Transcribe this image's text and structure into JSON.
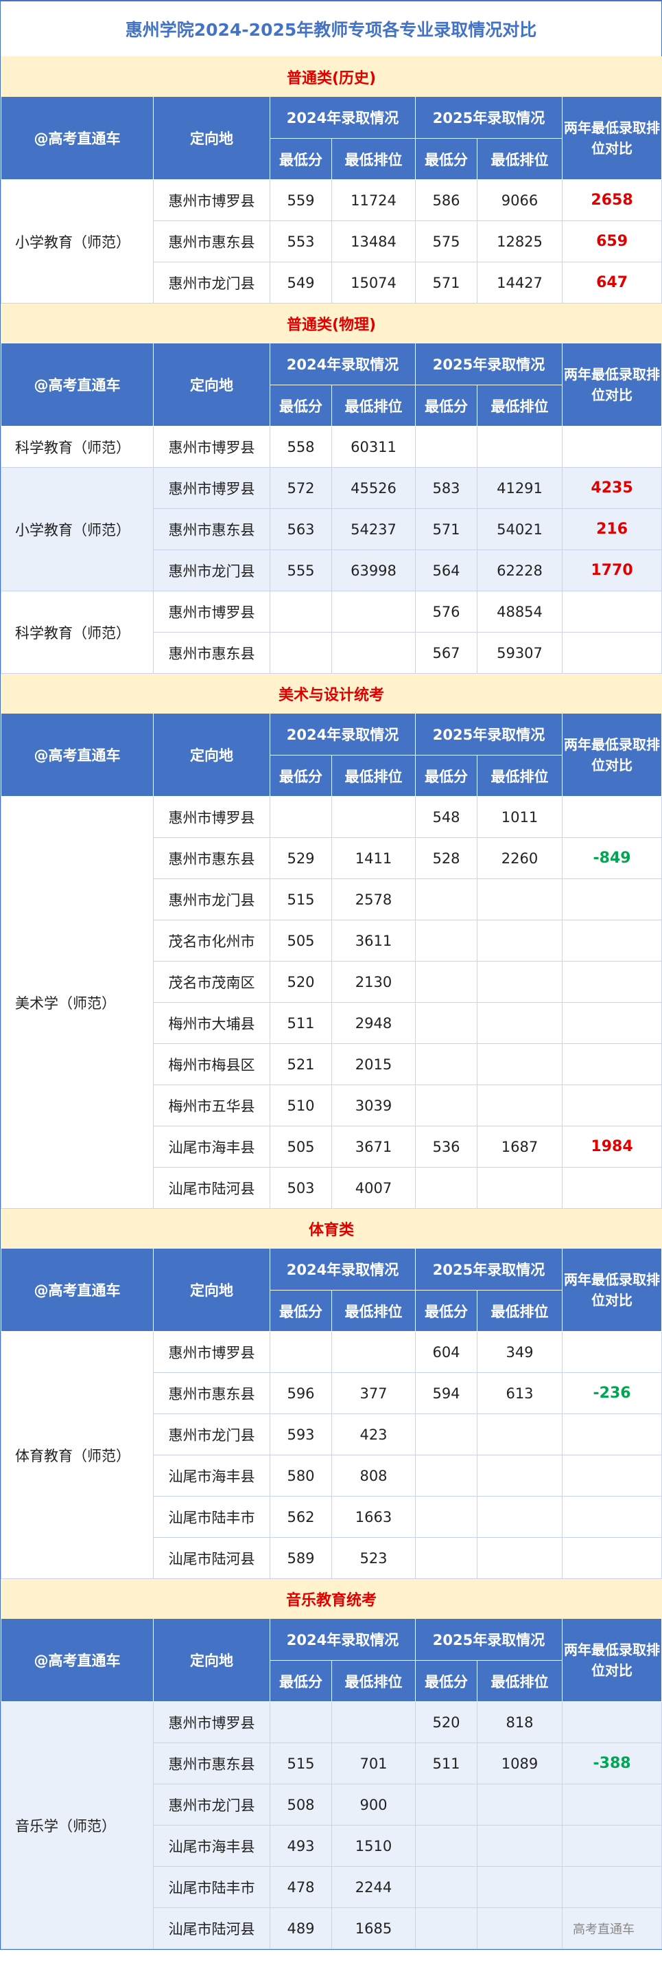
{
  "title": "惠州学院2024-2025年教师专项各专业录取情况对比",
  "header": {
    "corner": "@高考直通车",
    "location": "定向地",
    "y2024": "2024年录取情况",
    "y2025": "2025年录取情况",
    "compare": "两年最低录取排位对比",
    "min_score": "最低分",
    "min_rank": "最低排位"
  },
  "colors": {
    "accent": "#4472C4",
    "band": "#FFF2CC",
    "section_title": "#E00000",
    "positive": "#E00000",
    "negative": "#00A651"
  },
  "sections": [
    {
      "name": "普通类(历史)",
      "groups": [
        {
          "major": "小学教育（师范）",
          "alt": false,
          "rows": [
            {
              "loc": "惠州市博罗县",
              "s24": "559",
              "r24": "11724",
              "s25": "586",
              "r25": "9066",
              "cmp": "2658"
            },
            {
              "loc": "惠州市惠东县",
              "s24": "553",
              "r24": "13484",
              "s25": "575",
              "r25": "12825",
              "cmp": "659"
            },
            {
              "loc": "惠州市龙门县",
              "s24": "549",
              "r24": "15074",
              "s25": "571",
              "r25": "14427",
              "cmp": "647"
            }
          ]
        }
      ]
    },
    {
      "name": "普通类(物理)",
      "groups": [
        {
          "major": "科学教育（师范）",
          "alt": false,
          "rows": [
            {
              "loc": "惠州市博罗县",
              "s24": "558",
              "r24": "60311",
              "s25": "",
              "r25": "",
              "cmp": ""
            }
          ]
        },
        {
          "major": "小学教育（师范）",
          "alt": true,
          "rows": [
            {
              "loc": "惠州市博罗县",
              "s24": "572",
              "r24": "45526",
              "s25": "583",
              "r25": "41291",
              "cmp": "4235"
            },
            {
              "loc": "惠州市惠东县",
              "s24": "563",
              "r24": "54237",
              "s25": "571",
              "r25": "54021",
              "cmp": "216"
            },
            {
              "loc": "惠州市龙门县",
              "s24": "555",
              "r24": "63998",
              "s25": "564",
              "r25": "62228",
              "cmp": "1770"
            }
          ]
        },
        {
          "major": "科学教育（师范）",
          "alt": false,
          "rows": [
            {
              "loc": "惠州市博罗县",
              "s24": "",
              "r24": "",
              "s25": "576",
              "r25": "48854",
              "cmp": ""
            },
            {
              "loc": "惠州市惠东县",
              "s24": "",
              "r24": "",
              "s25": "567",
              "r25": "59307",
              "cmp": ""
            }
          ]
        }
      ]
    },
    {
      "name": "美术与设计统考",
      "groups": [
        {
          "major": "美术学（师范）",
          "alt": false,
          "rows": [
            {
              "loc": "惠州市博罗县",
              "s24": "",
              "r24": "",
              "s25": "548",
              "r25": "1011",
              "cmp": ""
            },
            {
              "loc": "惠州市惠东县",
              "s24": "529",
              "r24": "1411",
              "s25": "528",
              "r25": "2260",
              "cmp": "-849"
            },
            {
              "loc": "惠州市龙门县",
              "s24": "515",
              "r24": "2578",
              "s25": "",
              "r25": "",
              "cmp": ""
            },
            {
              "loc": "茂名市化州市",
              "s24": "505",
              "r24": "3611",
              "s25": "",
              "r25": "",
              "cmp": ""
            },
            {
              "loc": "茂名市茂南区",
              "s24": "520",
              "r24": "2130",
              "s25": "",
              "r25": "",
              "cmp": ""
            },
            {
              "loc": "梅州市大埔县",
              "s24": "511",
              "r24": "2948",
              "s25": "",
              "r25": "",
              "cmp": ""
            },
            {
              "loc": "梅州市梅县区",
              "s24": "521",
              "r24": "2015",
              "s25": "",
              "r25": "",
              "cmp": ""
            },
            {
              "loc": "梅州市五华县",
              "s24": "510",
              "r24": "3039",
              "s25": "",
              "r25": "",
              "cmp": ""
            },
            {
              "loc": "汕尾市海丰县",
              "s24": "505",
              "r24": "3671",
              "s25": "536",
              "r25": "1687",
              "cmp": "1984"
            },
            {
              "loc": "汕尾市陆河县",
              "s24": "503",
              "r24": "4007",
              "s25": "",
              "r25": "",
              "cmp": ""
            }
          ]
        }
      ]
    },
    {
      "name": "体育类",
      "groups": [
        {
          "major": "体育教育（师范）",
          "alt": false,
          "rows": [
            {
              "loc": "惠州市博罗县",
              "s24": "",
              "r24": "",
              "s25": "604",
              "r25": "349",
              "cmp": ""
            },
            {
              "loc": "惠州市惠东县",
              "s24": "596",
              "r24": "377",
              "s25": "594",
              "r25": "613",
              "cmp": "-236"
            },
            {
              "loc": "惠州市龙门县",
              "s24": "593",
              "r24": "423",
              "s25": "",
              "r25": "",
              "cmp": ""
            },
            {
              "loc": "汕尾市海丰县",
              "s24": "580",
              "r24": "808",
              "s25": "",
              "r25": "",
              "cmp": ""
            },
            {
              "loc": "汕尾市陆丰市",
              "s24": "562",
              "r24": "1663",
              "s25": "",
              "r25": "",
              "cmp": ""
            },
            {
              "loc": "汕尾市陆河县",
              "s24": "589",
              "r24": "523",
              "s25": "",
              "r25": "",
              "cmp": ""
            }
          ]
        }
      ]
    },
    {
      "name": "音乐教育统考",
      "groups": [
        {
          "major": "音乐学（师范）",
          "alt": true,
          "rows": [
            {
              "loc": "惠州市博罗县",
              "s24": "",
              "r24": "",
              "s25": "520",
              "r25": "818",
              "cmp": ""
            },
            {
              "loc": "惠州市惠东县",
              "s24": "515",
              "r24": "701",
              "s25": "511",
              "r25": "1089",
              "cmp": "-388"
            },
            {
              "loc": "惠州市龙门县",
              "s24": "508",
              "r24": "900",
              "s25": "",
              "r25": "",
              "cmp": ""
            },
            {
              "loc": "汕尾市海丰县",
              "s24": "493",
              "r24": "1510",
              "s25": "",
              "r25": "",
              "cmp": ""
            },
            {
              "loc": "汕尾市陆丰市",
              "s24": "478",
              "r24": "2244",
              "s25": "",
              "r25": "",
              "cmp": ""
            },
            {
              "loc": "汕尾市陆河县",
              "s24": "489",
              "r24": "1685",
              "s25": "",
              "r25": "",
              "cmp": ""
            }
          ]
        }
      ]
    }
  ],
  "footer_watermark": "高考直通车"
}
